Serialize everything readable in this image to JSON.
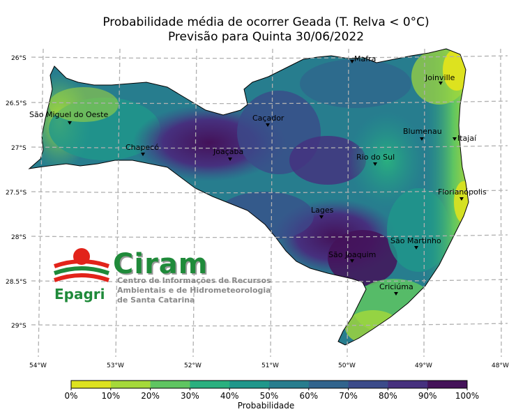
{
  "title": {
    "line1": "Probabilidade média de ocorrer Geada (T. Relva < 0°C)",
    "line2": "Previsão para Quinta 30/06/2022"
  },
  "lat_labels": [
    "26°S",
    "26.5°S",
    "27°S",
    "27.5°S",
    "28°S",
    "28.5°S",
    "29°S"
  ],
  "lon_labels": [
    "54°W",
    "53°W",
    "52°W",
    "51°W",
    "50°W",
    "49°W",
    "48°W"
  ],
  "cities": [
    {
      "name": "Mafra"
    },
    {
      "name": "Joinville"
    },
    {
      "name": "São Miguel do Oeste"
    },
    {
      "name": "Caçador"
    },
    {
      "name": "Blumenau"
    },
    {
      "name": "Itajaí"
    },
    {
      "name": "Chapecó"
    },
    {
      "name": "Joaçaba"
    },
    {
      "name": "Rio do Sul"
    },
    {
      "name": "Florianópolis"
    },
    {
      "name": "Lages"
    },
    {
      "name": "São Martinho"
    },
    {
      "name": "São Joaquim"
    },
    {
      "name": "Criciúma"
    }
  ],
  "colorbar": {
    "colors": [
      "#dde21f",
      "#a5d93a",
      "#5fc561",
      "#2ab07f",
      "#1f978b",
      "#277d8e",
      "#31648d",
      "#3b4b8a",
      "#46307e",
      "#441259"
    ],
    "ticks": [
      "0%",
      "10%",
      "20%",
      "30%",
      "40%",
      "50%",
      "60%",
      "70%",
      "80%",
      "90%",
      "100%"
    ],
    "label": "Probabilidade"
  },
  "logo": {
    "name": "Ciram",
    "subtitle": [
      "Centro de Informações de Recursos",
      "Ambientais e de Hidrometeorologia",
      "de Santa Catarina"
    ],
    "org": "Epagri"
  }
}
